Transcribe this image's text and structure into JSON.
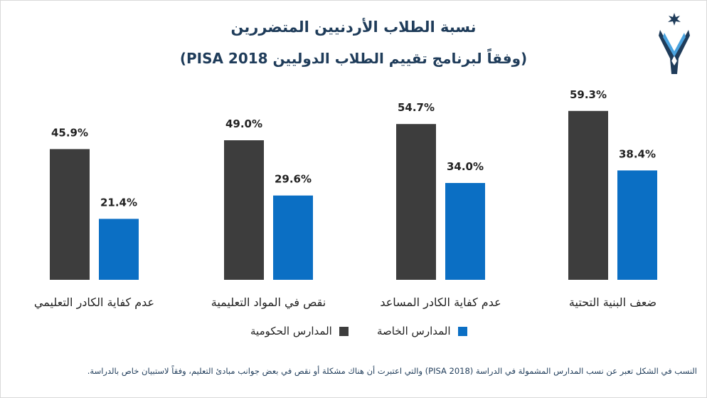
{
  "header": {
    "title_line1": "نسبة الطلاب الأردنيين المتضررين",
    "title_line2": "(وفقاً لبرنامج تقييم الطلاب الدوليين PISA 2018)"
  },
  "logo": {
    "icon": "jordan-star-banner-logo"
  },
  "colors": {
    "government": "#3d3d3d",
    "private": "#0b6fc4",
    "title": "#1f3c5a"
  },
  "chart_data": {
    "type": "bar",
    "title": "نسبة الطلاب الأردنيين المتضررين",
    "subtitle": "(وفقاً لبرنامج تقييم الطلاب الدوليين PISA 2018)",
    "categories": [
      "عدم كفاية الكادر التعليمي",
      "نقص في المواد التعليمية",
      "عدم كفاية الكادر المساعد",
      "ضعف البنية التحتية"
    ],
    "series": [
      {
        "name": "المدارس الحكومية",
        "values": [
          45.9,
          49.0,
          54.7,
          59.3
        ],
        "labels": [
          "45.9%",
          "49.0%",
          "54.7%",
          "59.3%"
        ]
      },
      {
        "name": "المدارس الخاصة",
        "values": [
          21.4,
          29.6,
          34.0,
          38.4
        ],
        "labels": [
          "21.4%",
          "29.6%",
          "34.0%",
          "38.4%"
        ]
      }
    ],
    "ylim": [
      0,
      100
    ],
    "grid": false,
    "legend_position": "bottom"
  },
  "legend": {
    "government": "المدارس الحكومية",
    "private": "المدارس الخاصة"
  },
  "footnote": "النسب في الشكل تعبر عن نسب المدارس المشمولة في الدراسة (PISA 2018) والتي اعتبرت أن هناك مشكلة أو نقص في بعض جوانب مبادئ التعليم، وفقاً لاستبيان خاص بالدراسة."
}
